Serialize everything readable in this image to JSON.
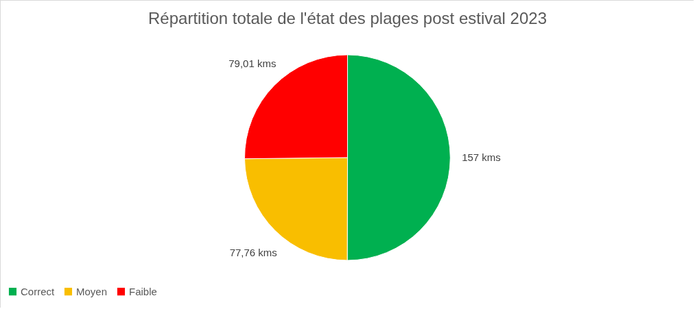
{
  "chart_data": {
    "type": "pie",
    "title": "Répartition totale de l'état des plages post estival 2023",
    "categories": [
      "Correct",
      "Moyen",
      "Faible"
    ],
    "values": [
      157,
      77.76,
      79.01
    ],
    "colors": [
      "#00b050",
      "#f9be00",
      "#ff0000"
    ],
    "value_labels": [
      "157 kms",
      "77,76 kms",
      "79,01 kms"
    ],
    "legend": "bottom"
  }
}
